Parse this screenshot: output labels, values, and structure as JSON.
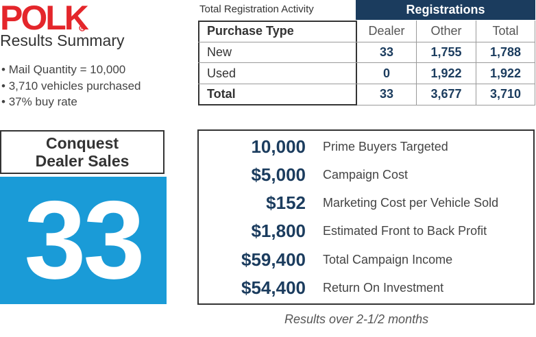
{
  "logo": {
    "text": "POLK",
    "color": "#e4262b"
  },
  "summary": {
    "title": "Results Summary",
    "bullets": [
      "Mail Quantity = 10,000",
      "3,710 vehicles purchased",
      "37% buy rate"
    ]
  },
  "registration": {
    "caption": "Total Registration Activity",
    "header": "Registrations",
    "columns": [
      "Purchase Type",
      "Dealer",
      "Other",
      "Total"
    ],
    "rows": [
      {
        "type": "New",
        "dealer": "33",
        "other": "1,755",
        "total": "1,788"
      },
      {
        "type": "Used",
        "dealer": "0",
        "other": "1,922",
        "total": "1,922"
      },
      {
        "type": "Total",
        "dealer": "33",
        "other": "3,677",
        "total": "3,710"
      }
    ]
  },
  "conquest": {
    "line1": "Conquest",
    "line2": "Dealer Sales",
    "value": "33",
    "panel_color": "#1a9bd7"
  },
  "metrics": [
    {
      "value": "10,000",
      "label": "Prime Buyers Targeted"
    },
    {
      "value": "$5,000",
      "label": "Campaign Cost"
    },
    {
      "value": "$152",
      "label": "Marketing Cost per Vehicle Sold"
    },
    {
      "value": "$1,800",
      "label": "Estimated Front to Back Profit"
    },
    {
      "value": "$59,400",
      "label": "Total Campaign Income"
    },
    {
      "value": "$54,400",
      "label": "Return On Investment"
    }
  ],
  "footer_note": "Results over 2-1/2 months",
  "colors": {
    "navy": "#1b3c5e",
    "accent_blue": "#1a9bd7",
    "brand_red": "#e4262b"
  }
}
